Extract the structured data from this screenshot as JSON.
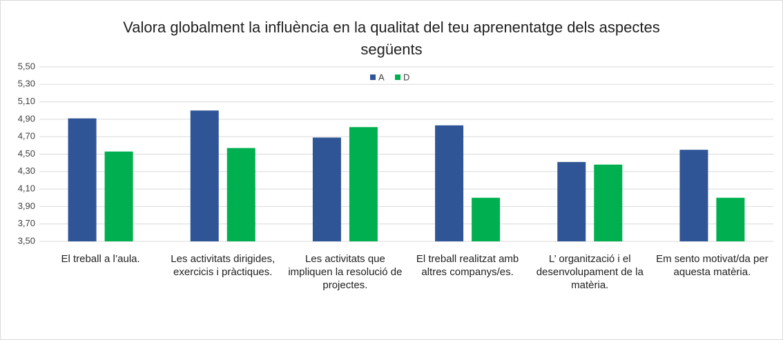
{
  "chart_data": {
    "type": "bar",
    "title": "Valora globalment la influència en la qualitat del teu aprenentatge dels aspectes següents",
    "categories": [
      "El treball a l’aula.",
      "Les activitats dirigides, exercicis i pràctiques.",
      "Les activitats que impliquen la resolució de projectes.",
      "El treball realitzat amb altres companys/es.",
      "L’ organització i el desenvolupament de la matèria.",
      "Em sento motivat/da per aquesta matèria."
    ],
    "series": [
      {
        "name": "A",
        "color": "#2f5597",
        "values": [
          4.91,
          5.0,
          4.69,
          4.83,
          4.41,
          4.55
        ]
      },
      {
        "name": "D",
        "color": "#00b050",
        "values": [
          4.53,
          4.57,
          4.81,
          4.0,
          4.38,
          4.0
        ]
      }
    ],
    "ylim": [
      3.5,
      5.5
    ],
    "yticks": [
      {
        "value": 3.5,
        "label": "3,50"
      },
      {
        "value": 3.7,
        "label": "3,70"
      },
      {
        "value": 3.9,
        "label": "3,90"
      },
      {
        "value": 4.1,
        "label": "4,10"
      },
      {
        "value": 4.3,
        "label": "4,30"
      },
      {
        "value": 4.5,
        "label": "4,50"
      },
      {
        "value": 4.7,
        "label": "4,70"
      },
      {
        "value": 4.9,
        "label": "4,90"
      },
      {
        "value": 5.1,
        "label": "5,10"
      },
      {
        "value": 5.3,
        "label": "5,30"
      },
      {
        "value": 5.5,
        "label": "5,50"
      }
    ],
    "grid": true,
    "legend": "top"
  }
}
